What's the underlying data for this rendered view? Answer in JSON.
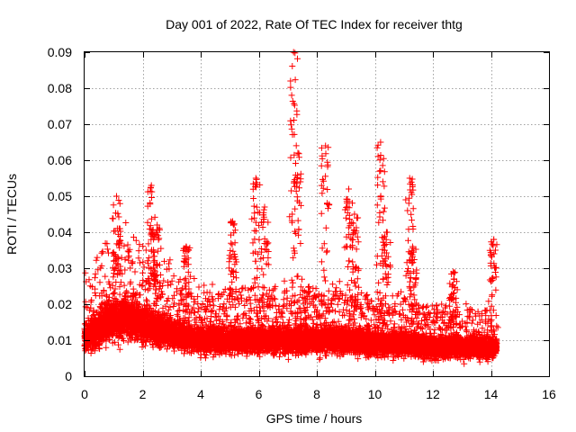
{
  "chart_data": {
    "type": "scatter",
    "title": "Day 001 of 2022, Rate Of TEC Index for receiver thtg",
    "xlabel": "GPS time / hours",
    "ylabel": "ROTI / TECUs",
    "xlim": [
      0,
      16
    ],
    "ylim": [
      0,
      0.09
    ],
    "xticks": [
      "0",
      "2",
      "4",
      "6",
      "8",
      "10",
      "12",
      "14",
      "16"
    ],
    "yticks": [
      "0",
      "0.01",
      "0.02",
      "0.03",
      "0.04",
      "0.05",
      "0.06",
      "0.07",
      "0.08",
      "0.09"
    ],
    "grid": true,
    "marker": "+",
    "color": "#ff0000",
    "series": [
      {
        "name": "ROTI",
        "baseline_profile": {
          "x": [
            0,
            0.5,
            1.0,
            1.5,
            2.0,
            2.5,
            3.0,
            4.0,
            5.0,
            6.0,
            7.0,
            8.0,
            9.0,
            10.0,
            11.0,
            12.0,
            13.0,
            14.0,
            14.2
          ],
          "y_center": [
            0.011,
            0.013,
            0.016,
            0.016,
            0.015,
            0.013,
            0.012,
            0.01,
            0.01,
            0.01,
            0.01,
            0.01,
            0.01,
            0.009,
            0.009,
            0.008,
            0.008,
            0.008,
            0.008
          ]
        },
        "peaks": [
          {
            "x": 1.1,
            "y": 0.05
          },
          {
            "x": 2.3,
            "y": 0.053
          },
          {
            "x": 2.5,
            "y": 0.042
          },
          {
            "x": 3.5,
            "y": 0.036
          },
          {
            "x": 5.1,
            "y": 0.043
          },
          {
            "x": 5.9,
            "y": 0.055
          },
          {
            "x": 6.2,
            "y": 0.047
          },
          {
            "x": 7.2,
            "y": 0.09
          },
          {
            "x": 7.35,
            "y": 0.062
          },
          {
            "x": 8.3,
            "y": 0.064
          },
          {
            "x": 9.1,
            "y": 0.052
          },
          {
            "x": 9.3,
            "y": 0.045
          },
          {
            "x": 10.2,
            "y": 0.065
          },
          {
            "x": 10.4,
            "y": 0.04
          },
          {
            "x": 11.2,
            "y": 0.055
          },
          {
            "x": 11.3,
            "y": 0.036
          },
          {
            "x": 12.7,
            "y": 0.029
          },
          {
            "x": 14.1,
            "y": 0.038
          }
        ]
      }
    ]
  }
}
